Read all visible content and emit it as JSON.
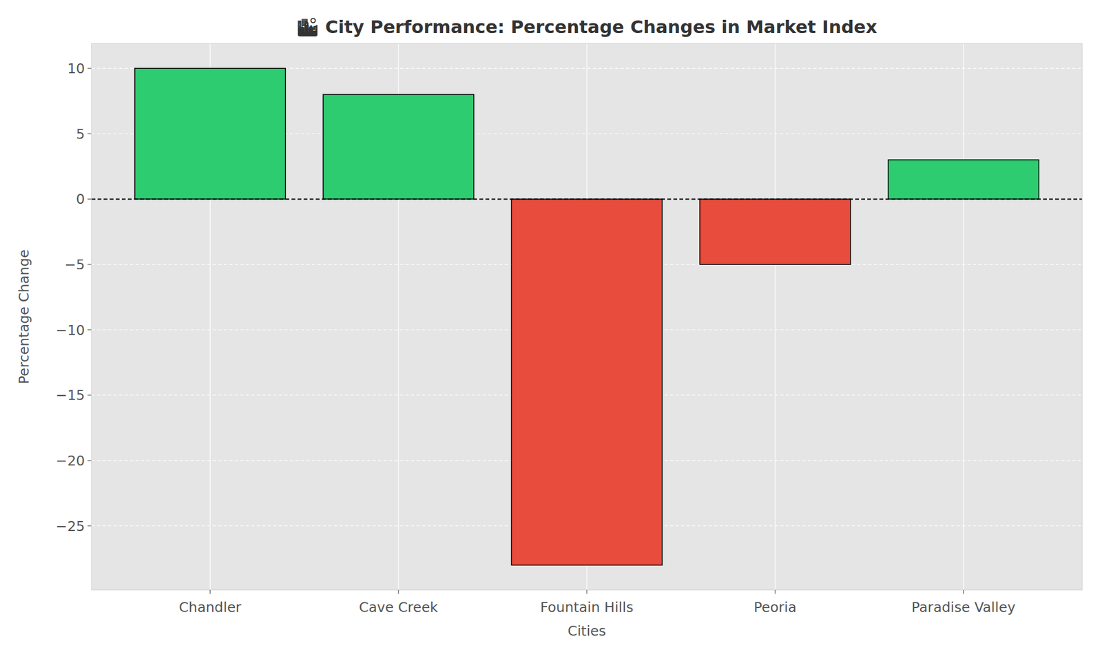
{
  "chart_data": {
    "type": "bar",
    "title": "🏙 City Performance: Percentage Changes in Market Index",
    "x_label": "Cities",
    "y_label": "Percentage Change",
    "categories": [
      "Chandler",
      "Cave Creek",
      "Fountain Hills",
      "Peoria",
      "Paradise Valley"
    ],
    "values": [
      10,
      8,
      -28,
      -5,
      3
    ],
    "colors": [
      "#2ecc71",
      "#2ecc71",
      "#e74c3c",
      "#e74c3c",
      "#2ecc71"
    ],
    "ylim": [
      -29.9,
      11.9
    ],
    "yticks": [
      {
        "value": -25,
        "label": "−25"
      },
      {
        "value": -20,
        "label": "−20"
      },
      {
        "value": -15,
        "label": "−15"
      },
      {
        "value": -10,
        "label": "−10"
      },
      {
        "value": -5,
        "label": "−5"
      },
      0,
      5,
      10
    ],
    "grid": true
  }
}
